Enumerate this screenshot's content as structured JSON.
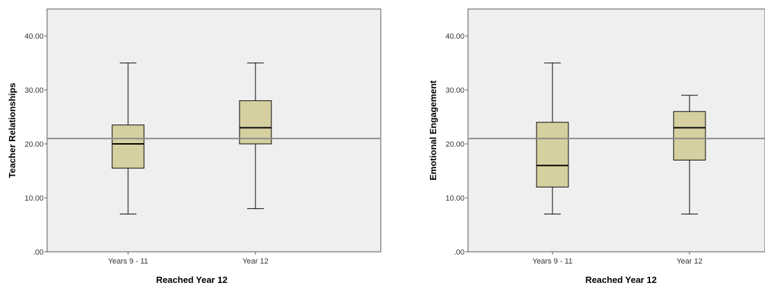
{
  "chart_data": [
    {
      "type": "boxplot",
      "xlabel": "Reached Year 12",
      "ylabel": "Teacher Relationships",
      "ylim": [
        0,
        45
      ],
      "yticks": [
        0,
        10,
        20,
        30,
        40
      ],
      "ytick_labels": [
        ".00",
        "10.00",
        "20.00",
        "30.00",
        "40.00"
      ],
      "categories": [
        "Years 9 - 11",
        "Year 12"
      ],
      "boxes": [
        {
          "min": 7,
          "q1": 15.5,
          "median": 20,
          "q3": 23.5,
          "max": 35
        },
        {
          "min": 8,
          "q1": 20,
          "median": 23,
          "q3": 28,
          "max": 35
        }
      ],
      "reference_line": 21,
      "grid": false,
      "colors": {
        "plot_bg": "#efefef",
        "box_fill": "#d6cf9f",
        "ref_line": "#8a8a8a"
      }
    },
    {
      "type": "boxplot",
      "xlabel": "Reached Year 12",
      "ylabel": "Emotional Engagement",
      "ylim": [
        0,
        45
      ],
      "yticks": [
        0,
        10,
        20,
        30,
        40
      ],
      "ytick_labels": [
        ".00",
        "10.00",
        "20.00",
        "30.00",
        "40.00"
      ],
      "categories": [
        "Years 9 - 11",
        "Year 12"
      ],
      "boxes": [
        {
          "min": 7,
          "q1": 12,
          "median": 16,
          "q3": 24,
          "max": 35
        },
        {
          "min": 7,
          "q1": 17,
          "median": 23,
          "q3": 26,
          "max": 29
        }
      ],
      "reference_line": 21,
      "grid": false,
      "colors": {
        "plot_bg": "#efefef",
        "box_fill": "#d6cf9f",
        "ref_line": "#8a8a8a"
      }
    }
  ]
}
